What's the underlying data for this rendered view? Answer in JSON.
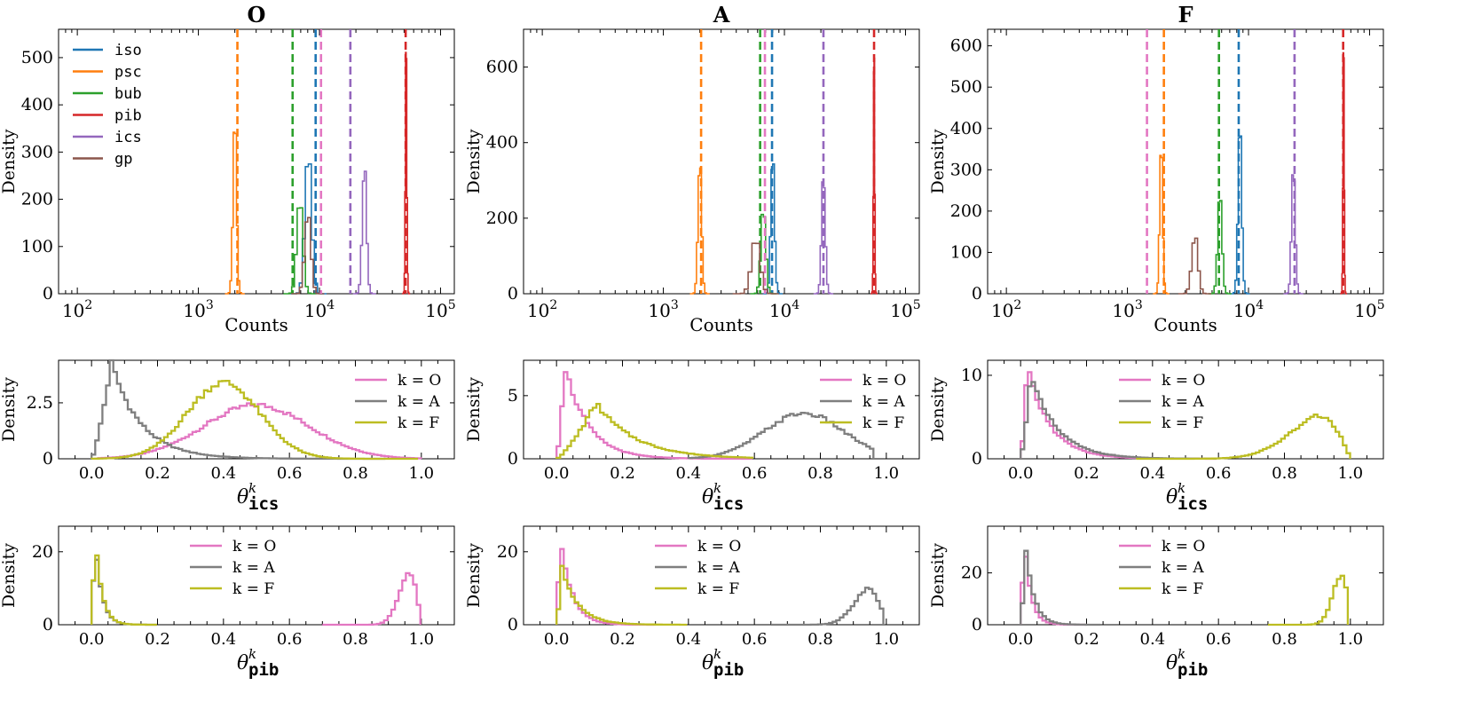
{
  "figure": {
    "panel_titles": [
      "O",
      "A",
      "F"
    ],
    "counts_xlabel": "Counts",
    "density_ylabel": "Density",
    "theta_symbol": "θ",
    "theta_superscript": "k",
    "theta_ics_subscript": "ics",
    "theta_pib_subscript": "pib"
  },
  "chart_data": [
    {
      "type": "histogram",
      "title": "O",
      "xlabel": "Counts",
      "ylabel": "Density",
      "xscale": "log",
      "xlim": [
        70,
        130000
      ],
      "ylim": [
        0,
        560
      ],
      "xticks": [
        100,
        1000,
        10000,
        100000
      ],
      "xtick_labels": [
        "10^2",
        "10^3",
        "10^4",
        "10^5"
      ],
      "yticks": [
        0,
        100,
        200,
        300,
        400,
        500
      ],
      "legend": {
        "location": "upper-left",
        "entries": [
          "iso",
          "psc",
          "bub",
          "pib",
          "ics",
          "gp"
        ]
      },
      "series": [
        {
          "name": "iso",
          "color": "#1f77b4",
          "center": 8100,
          "peak": 300,
          "width": 0.055,
          "vline": 9300
        },
        {
          "name": "psc",
          "color": "#ff7f0e",
          "center": 2000,
          "peak": 365,
          "width": 0.03,
          "vline": 2100
        },
        {
          "name": "bub",
          "color": "#2ca02c",
          "center": 6900,
          "peak": 200,
          "width": 0.05,
          "vline": 6000
        },
        {
          "name": "pib",
          "color": "#d62728",
          "center": 52000,
          "peak": 540,
          "width": 0.012,
          "vline": 51500
        },
        {
          "name": "ics",
          "color": "#9467bd",
          "center": 23500,
          "peak": 272,
          "width": 0.035,
          "vline": 18000
        },
        {
          "name": "gp",
          "color": "#8c564b",
          "center": 8000,
          "peak": 175,
          "width": 0.05,
          "vline": null
        },
        {
          "name": "",
          "color": "#e377c2",
          "center": null,
          "peak": null,
          "width": null,
          "vline": 10300
        }
      ]
    },
    {
      "type": "histogram",
      "title": "A",
      "xlabel": "Counts",
      "ylabel": "Density",
      "xscale": "log",
      "xlim": [
        70,
        130000
      ],
      "ylim": [
        0,
        700
      ],
      "xticks": [
        100,
        1000,
        10000,
        100000
      ],
      "xtick_labels": [
        "10^2",
        "10^3",
        "10^4",
        "10^5"
      ],
      "yticks": [
        0,
        200,
        400,
        600
      ],
      "series": [
        {
          "name": "iso",
          "color": "#1f77b4",
          "center": 8000,
          "peak": 370,
          "width": 0.03,
          "vline": 7900
        },
        {
          "name": "psc",
          "color": "#ff7f0e",
          "center": 2000,
          "peak": 365,
          "width": 0.03,
          "vline": 2050
        },
        {
          "name": "bub",
          "color": "#2ca02c",
          "center": 6700,
          "peak": 230,
          "width": 0.04,
          "vline": 6300
        },
        {
          "name": "pib",
          "color": "#d62728",
          "center": 55000,
          "peak": 670,
          "width": 0.01,
          "vline": 55000
        },
        {
          "name": "ics",
          "color": "#9467bd",
          "center": 21000,
          "peak": 310,
          "width": 0.03,
          "vline": 21000
        },
        {
          "name": "gp",
          "color": "#8c564b",
          "center": 5800,
          "peak": 152,
          "width": 0.07,
          "vline": null
        },
        {
          "name": "",
          "color": "#e377c2",
          "center": null,
          "peak": null,
          "width": null,
          "vline": 6900
        }
      ]
    },
    {
      "type": "histogram",
      "title": "F",
      "xlabel": "Counts",
      "ylabel": "Density",
      "xscale": "log",
      "xlim": [
        70,
        130000
      ],
      "ylim": [
        0,
        640
      ],
      "xticks": [
        100,
        1000,
        10000,
        100000
      ],
      "xtick_labels": [
        "10^2",
        "10^3",
        "10^4",
        "10^5"
      ],
      "yticks": [
        0,
        100,
        200,
        300,
        400,
        500,
        600
      ],
      "series": [
        {
          "name": "iso",
          "color": "#1f77b4",
          "center": 8500,
          "peak": 420,
          "width": 0.03,
          "vline": 8300
        },
        {
          "name": "psc",
          "color": "#ff7f0e",
          "center": 1900,
          "peak": 360,
          "width": 0.025,
          "vline": 2000
        },
        {
          "name": "bub",
          "color": "#2ca02c",
          "center": 5800,
          "peak": 245,
          "width": 0.035,
          "vline": 5700
        },
        {
          "name": "pib",
          "color": "#d62728",
          "center": 61000,
          "peak": 610,
          "width": 0.01,
          "vline": 60500
        },
        {
          "name": "ics",
          "color": "#9467bd",
          "center": 23500,
          "peak": 315,
          "width": 0.03,
          "vline": 24000
        },
        {
          "name": "gp",
          "color": "#8c564b",
          "center": 3600,
          "peak": 143,
          "width": 0.05,
          "vline": null
        },
        {
          "name": "",
          "color": "#e377c2",
          "center": null,
          "peak": null,
          "width": null,
          "vline": 1450
        }
      ]
    },
    {
      "type": "histogram",
      "xlabel": "θ^k_ics",
      "ylabel": "Density",
      "xlim": [
        -0.1,
        1.1
      ],
      "ylim": [
        0,
        4.4
      ],
      "xticks": [
        0.0,
        0.2,
        0.4,
        0.6,
        0.8,
        1.0
      ],
      "yticks": [
        0.0,
        2.5
      ],
      "legend": {
        "location": "upper-right",
        "entries": [
          "k = O",
          "k = A",
          "k = F"
        ]
      },
      "series": [
        {
          "name": "k = O",
          "color": "#e377c2",
          "shape": "gauss",
          "center": 0.5,
          "sd": 0.16,
          "peak": 2.4,
          "lo": 0.02,
          "hi": 1.0
        },
        {
          "name": "k = A",
          "color": "#7f7f7f",
          "shape": "gamma",
          "mode": 0.06,
          "scale": 0.09,
          "peak": 4.3,
          "lo": 0.0,
          "hi": 0.9
        },
        {
          "name": "k = F",
          "color": "#bcbd22",
          "shape": "gauss",
          "center": 0.4,
          "sd": 0.11,
          "peak": 3.4,
          "lo": 0.0,
          "hi": 1.0
        }
      ]
    },
    {
      "type": "histogram",
      "xlabel": "θ^k_ics",
      "ylabel": "Density",
      "xlim": [
        -0.1,
        1.1
      ],
      "ylim": [
        0,
        7.8
      ],
      "xticks": [
        0.0,
        0.2,
        0.4,
        0.6,
        0.8,
        1.0
      ],
      "yticks": [
        0,
        5
      ],
      "legend": {
        "location": "upper-right",
        "entries": [
          "k = O",
          "k = A",
          "k = F"
        ]
      },
      "series": [
        {
          "name": "k = O",
          "color": "#e377c2",
          "shape": "gamma",
          "mode": 0.025,
          "scale": 0.07,
          "peak": 7.4,
          "lo": 0.0,
          "hi": 0.6
        },
        {
          "name": "k = A",
          "color": "#7f7f7f",
          "shape": "gauss",
          "center": 0.75,
          "sd": 0.12,
          "peak": 3.6,
          "lo": 0.4,
          "hi": 0.97
        },
        {
          "name": "k = F",
          "color": "#bcbd22",
          "shape": "gamma",
          "mode": 0.12,
          "scale": 0.12,
          "peak": 4.4,
          "lo": 0.0,
          "hi": 0.6
        }
      ]
    },
    {
      "type": "histogram",
      "xlabel": "θ^k_ics",
      "ylabel": "Density",
      "xlim": [
        -0.1,
        1.1
      ],
      "ylim": [
        0,
        11.8
      ],
      "xticks": [
        0.0,
        0.2,
        0.4,
        0.6,
        0.8,
        1.0
      ],
      "yticks": [
        0,
        10
      ],
      "legend": {
        "location": "upper-center",
        "entries": [
          "k = O",
          "k = A",
          "k = F"
        ]
      },
      "series": [
        {
          "name": "k = O",
          "color": "#e377c2",
          "shape": "gamma",
          "mode": 0.02,
          "scale": 0.07,
          "peak": 11.0,
          "lo": 0.0,
          "hi": 0.6
        },
        {
          "name": "k = A",
          "color": "#7f7f7f",
          "shape": "gamma",
          "mode": 0.03,
          "scale": 0.08,
          "peak": 10.0,
          "lo": 0.0,
          "hi": 0.6
        },
        {
          "name": "k = F",
          "color": "#bcbd22",
          "shape": "skewleft",
          "mode": 0.9,
          "scale": 0.11,
          "peak": 5.2,
          "lo": 0.35,
          "hi": 1.0
        }
      ]
    },
    {
      "type": "histogram",
      "xlabel": "θ^k_pib",
      "ylabel": "Density",
      "xlim": [
        -0.1,
        1.1
      ],
      "ylim": [
        0,
        27
      ],
      "xticks": [
        0.0,
        0.2,
        0.4,
        0.6,
        0.8,
        1.0
      ],
      "yticks": [
        0,
        20
      ],
      "legend": {
        "location": "upper-center",
        "entries": [
          "k = O",
          "k = A",
          "k = F"
        ]
      },
      "series": [
        {
          "name": "k = O",
          "color": "#e377c2",
          "shape": "skewleft",
          "mode": 0.96,
          "scale": 0.035,
          "peak": 14.5,
          "lo": 0.7,
          "hi": 1.0
        },
        {
          "name": "k = A",
          "color": "#7f7f7f",
          "shape": "gamma",
          "mode": 0.01,
          "scale": 0.02,
          "peak": 25.0,
          "lo": 0.0,
          "hi": 0.2
        },
        {
          "name": "k = F",
          "color": "#bcbd22",
          "shape": "gamma",
          "mode": 0.01,
          "scale": 0.02,
          "peak": 26.0,
          "lo": 0.0,
          "hi": 0.2
        }
      ]
    },
    {
      "type": "histogram",
      "xlabel": "θ^k_pib",
      "ylabel": "Density",
      "xlim": [
        -0.1,
        1.1
      ],
      "ylim": [
        0,
        27
      ],
      "xticks": [
        0.0,
        0.2,
        0.4,
        0.6,
        0.8,
        1.0
      ],
      "yticks": [
        0,
        20
      ],
      "legend": {
        "location": "upper-center",
        "entries": [
          "k = O",
          "k = A",
          "k = F"
        ]
      },
      "series": [
        {
          "name": "k = O",
          "color": "#e377c2",
          "shape": "gamma",
          "mode": 0.01,
          "scale": 0.035,
          "peak": 26.0,
          "lo": 0.0,
          "hi": 0.3
        },
        {
          "name": "k = A",
          "color": "#7f7f7f",
          "shape": "skewleft",
          "mode": 0.94,
          "scale": 0.05,
          "peak": 10.0,
          "lo": 0.65,
          "hi": 1.0
        },
        {
          "name": "k = F",
          "color": "#bcbd22",
          "shape": "gamma",
          "mode": 0.015,
          "scale": 0.05,
          "peak": 16.0,
          "lo": 0.0,
          "hi": 0.4
        }
      ]
    },
    {
      "type": "histogram",
      "xlabel": "θ^k_pib",
      "ylabel": "Density",
      "xlim": [
        -0.1,
        1.1
      ],
      "ylim": [
        0,
        38
      ],
      "xticks": [
        0.0,
        0.2,
        0.4,
        0.6,
        0.8,
        1.0
      ],
      "yticks": [
        0,
        20
      ],
      "legend": {
        "location": "upper-center",
        "entries": [
          "k = O",
          "k = A",
          "k = F"
        ]
      },
      "series": [
        {
          "name": "k = O",
          "color": "#e377c2",
          "shape": "gamma",
          "mode": 0.01,
          "scale": 0.02,
          "peak": 36.0,
          "lo": 0.0,
          "hi": 0.2
        },
        {
          "name": "k = A",
          "color": "#7f7f7f",
          "shape": "gamma",
          "mode": 0.015,
          "scale": 0.025,
          "peak": 31.0,
          "lo": 0.0,
          "hi": 0.25
        },
        {
          "name": "k = F",
          "color": "#bcbd22",
          "shape": "skewleft",
          "mode": 0.97,
          "scale": 0.03,
          "peak": 20.0,
          "lo": 0.75,
          "hi": 1.0
        }
      ]
    }
  ]
}
